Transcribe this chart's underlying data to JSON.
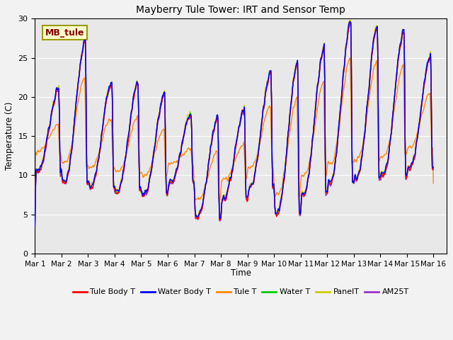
{
  "title": "Mayberry Tule Tower: IRT and Sensor Temp",
  "xlabel": "Time",
  "ylabel": "Temperature (C)",
  "ylim": [
    0,
    30
  ],
  "yticks": [
    0,
    5,
    10,
    15,
    20,
    25,
    30
  ],
  "xtick_labels": [
    "Mar 1",
    "Mar 2",
    "Mar 3",
    "Mar 4",
    "Mar 5",
    "Mar 6",
    "Mar 7",
    "Mar 8",
    "Mar 9",
    "Mar 10",
    "Mar 11",
    "Mar 12",
    "Mar 13",
    "Mar 14",
    "Mar 15",
    "Mar 16"
  ],
  "xtick_positions": [
    0,
    1,
    2,
    3,
    4,
    5,
    6,
    7,
    8,
    9,
    10,
    11,
    12,
    13,
    14,
    15
  ],
  "bg_color": "#e8e8e8",
  "fig_bg_color": "#f2f2f2",
  "text_box_label": "MB_tule",
  "text_box_color": "#ffffcc",
  "text_box_edge_color": "#999900",
  "series_colors": {
    "Tule Body T": "#ff0000",
    "Water Body T": "#0000ff",
    "Tule T": "#ff8800",
    "Water T": "#00cc00",
    "PanelT": "#cccc00",
    "AM25T": "#9933cc"
  },
  "legend_entries": [
    "Tule Body T",
    "Water Body T",
    "Tule T",
    "Water T",
    "PanelT",
    "AM25T"
  ]
}
